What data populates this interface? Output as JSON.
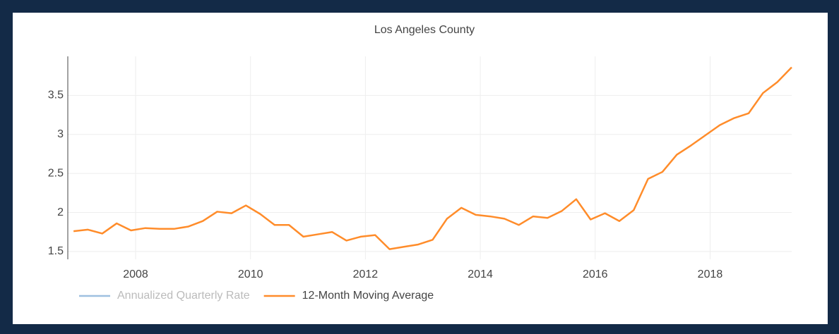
{
  "chart_data": {
    "type": "line",
    "title": "Los Angeles County",
    "x": [
      2006.92,
      2007.17,
      2007.42,
      2007.67,
      2007.92,
      2008.17,
      2008.42,
      2008.67,
      2008.92,
      2009.17,
      2009.42,
      2009.67,
      2009.92,
      2010.17,
      2010.42,
      2010.67,
      2010.92,
      2011.17,
      2011.42,
      2011.67,
      2011.92,
      2012.17,
      2012.42,
      2012.67,
      2012.92,
      2013.17,
      2013.42,
      2013.67,
      2013.92,
      2014.17,
      2014.42,
      2014.67,
      2014.92,
      2015.17,
      2015.42,
      2015.67,
      2015.92,
      2016.17,
      2016.42,
      2016.67,
      2016.92,
      2017.17,
      2017.42,
      2017.67,
      2017.92,
      2018.17,
      2018.42,
      2018.67,
      2018.92,
      2019.17,
      2019.42
    ],
    "series": [
      {
        "name": "Annualized Quarterly Rate",
        "color": "#9ec0e0",
        "visible": false
      },
      {
        "name": "12-Month Moving Average",
        "color": "#ff8c2a",
        "visible": true,
        "values": [
          1.76,
          1.78,
          1.73,
          1.86,
          1.77,
          1.8,
          1.79,
          1.79,
          1.82,
          1.89,
          2.01,
          1.99,
          2.09,
          1.98,
          1.84,
          1.84,
          1.69,
          1.72,
          1.75,
          1.64,
          1.69,
          1.71,
          1.53,
          1.56,
          1.59,
          1.65,
          1.92,
          2.06,
          1.97,
          1.95,
          1.92,
          1.84,
          1.95,
          1.93,
          2.02,
          2.17,
          1.91,
          1.99,
          1.89,
          2.03,
          2.43,
          2.52,
          2.74,
          2.86,
          2.99,
          3.12,
          3.21,
          3.27,
          3.53,
          3.67,
          3.86
        ]
      }
    ],
    "xlim": [
      2006.82,
      2019.42
    ],
    "xticks": [
      2008,
      2010,
      2012,
      2014,
      2016,
      2018
    ],
    "ylim": [
      1.4,
      4.0
    ],
    "yticks": [
      1.5,
      2,
      2.5,
      3,
      3.5
    ],
    "grid": true,
    "legend": "bottom"
  }
}
